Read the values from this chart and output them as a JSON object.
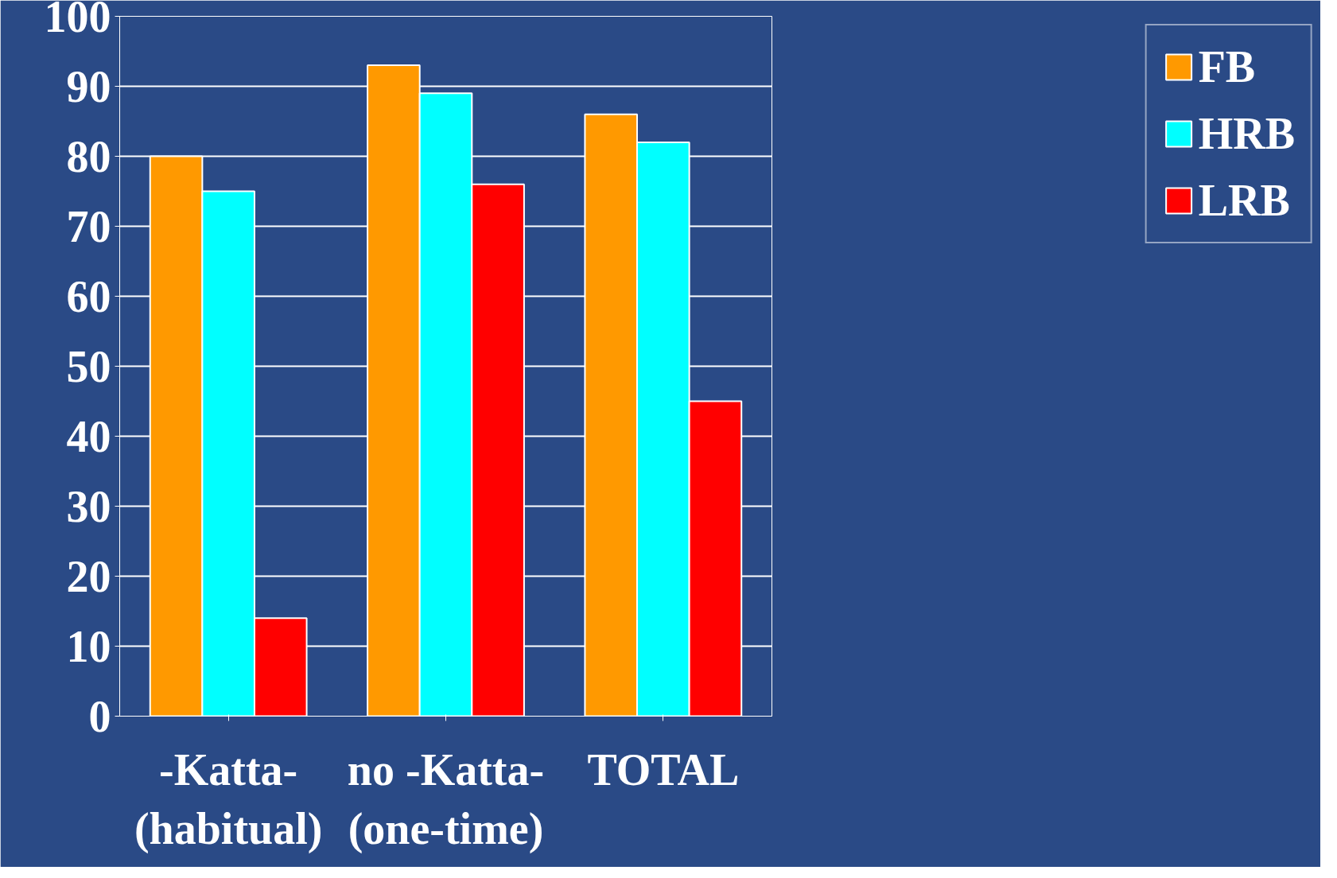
{
  "chart_data": {
    "type": "bar",
    "categories": [
      "-Katta-\n(habitual)",
      "no -Katta-\n(one-time)",
      "TOTAL"
    ],
    "series": [
      {
        "name": "FB",
        "color": "#ff9900",
        "values": [
          80,
          93,
          86
        ]
      },
      {
        "name": "HRB",
        "color": "#00ffff",
        "values": [
          75,
          89,
          82
        ]
      },
      {
        "name": "LRB",
        "color": "#ff0000",
        "values": [
          14,
          76,
          45
        ]
      }
    ],
    "ylim": [
      0,
      100
    ],
    "yticks": [
      0,
      10,
      20,
      30,
      40,
      50,
      60,
      70,
      80,
      90,
      100
    ],
    "grid": "y",
    "legend": "right"
  }
}
